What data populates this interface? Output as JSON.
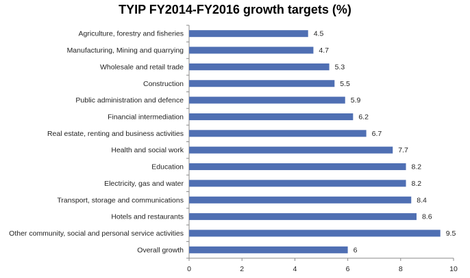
{
  "chart_data": {
    "type": "bar",
    "orientation": "horizontal",
    "title": "TYIP FY2014-FY2016 growth targets (%)",
    "xlabel": "",
    "ylabel": "",
    "xlim": [
      0,
      10
    ],
    "xticks": [
      0,
      2,
      4,
      6,
      8,
      10
    ],
    "grid": false,
    "legend": "none",
    "bar_color": "#4F6FB3",
    "categories": [
      "Agriculture, forestry and fisheries",
      "Manufacturing, Mining and quarrying",
      "Wholesale and retail trade",
      "Construction",
      "Public administration and defence",
      "Financial intermediation",
      "Real estate, renting and business activities",
      "Health and social work",
      "Education",
      "Electricity, gas and water",
      "Transport, storage and communications",
      "Hotels and restaurants",
      "Other community, social and personal service activities",
      "Overall growth"
    ],
    "values": [
      4.5,
      4.7,
      5.3,
      5.5,
      5.9,
      6.2,
      6.7,
      7.7,
      8.2,
      8.2,
      8.4,
      8.6,
      9.5,
      6
    ],
    "value_labels": [
      "4.5",
      "4.7",
      "5.3",
      "5.5",
      "5.9",
      "6.2",
      "6.7",
      "7.7",
      "8.2",
      "8.2",
      "8.4",
      "8.6",
      "9.5",
      "6"
    ]
  }
}
